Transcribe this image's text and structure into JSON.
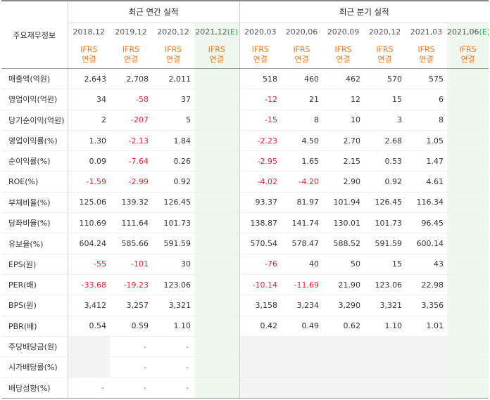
{
  "header": {
    "corner_label": "주요재무정보",
    "annual_title": "최근 연간 실적",
    "quarter_title": "최근 분기 실적",
    "annual_periods": [
      "2018,12",
      "2019,12",
      "2020,12",
      "2021,12"
    ],
    "annual_est_mark": "(E)",
    "quarter_periods": [
      "2020,03",
      "2020,06",
      "2020,09",
      "2020,12",
      "2021,03",
      "2021,06"
    ],
    "quarter_est_mark": "(E)",
    "ifrs_line1": "IFRS",
    "ifrs_line2": "연결"
  },
  "rows": [
    {
      "label": "매출액(억원)",
      "cells": [
        "2,643",
        "2,708",
        "2,011",
        "",
        "518",
        "460",
        "462",
        "570",
        "575",
        ""
      ]
    },
    {
      "label": "영업이익(억원)",
      "cells": [
        "34",
        "-58",
        "37",
        "",
        "-12",
        "21",
        "12",
        "15",
        "6",
        ""
      ]
    },
    {
      "label": "당기순이익(억원)",
      "cells": [
        "2",
        "-207",
        "5",
        "",
        "-15",
        "8",
        "10",
        "3",
        "8",
        ""
      ]
    },
    {
      "label": "영업이익률(%)",
      "cells": [
        "1.30",
        "-2.13",
        "1.84",
        "",
        "-2.23",
        "4.50",
        "2.70",
        "2.68",
        "1.05",
        ""
      ]
    },
    {
      "label": "순이익률(%)",
      "cells": [
        "0.09",
        "-7.64",
        "0.26",
        "",
        "-2.95",
        "1.65",
        "2.15",
        "0.53",
        "1.47",
        ""
      ]
    },
    {
      "label": "ROE(%)",
      "cells": [
        "-1.59",
        "-2.99",
        "0.92",
        "",
        "-4.02",
        "-4.20",
        "2.90",
        "0.92",
        "4.61",
        ""
      ]
    },
    {
      "label": "부채비율(%)",
      "cells": [
        "125.06",
        "139.32",
        "126.45",
        "",
        "93.37",
        "81.97",
        "101.94",
        "126.45",
        "116.34",
        ""
      ]
    },
    {
      "label": "당좌비율(%)",
      "cells": [
        "110.69",
        "111.64",
        "101.73",
        "",
        "138.87",
        "141.74",
        "130.01",
        "101.73",
        "96.45",
        ""
      ]
    },
    {
      "label": "유보율(%)",
      "cells": [
        "604.24",
        "585.66",
        "591.59",
        "",
        "570.54",
        "578.47",
        "588.52",
        "591.59",
        "600.14",
        ""
      ]
    },
    {
      "label": "EPS(원)",
      "cells": [
        "-55",
        "-101",
        "30",
        "",
        "-76",
        "40",
        "50",
        "15",
        "43",
        ""
      ]
    },
    {
      "label": "PER(배)",
      "cells": [
        "-33.68",
        "-19.23",
        "123.06",
        "",
        "-10.14",
        "-11.69",
        "21.90",
        "123.06",
        "22.98",
        ""
      ]
    },
    {
      "label": "BPS(원)",
      "cells": [
        "3,412",
        "3,257",
        "3,321",
        "",
        "3,158",
        "3,234",
        "3,290",
        "3,321",
        "3,356",
        ""
      ]
    },
    {
      "label": "PBR(배)",
      "cells": [
        "0.54",
        "0.59",
        "1.10",
        "",
        "0.42",
        "0.49",
        "0.62",
        "1.10",
        "1.01",
        ""
      ]
    },
    {
      "label": "주당배당금(원)",
      "cells": [
        "",
        "-",
        "-",
        "",
        "",
        "",
        "",
        "",
        "",
        ""
      ]
    },
    {
      "label": "시가배당률(%)",
      "cells": [
        "",
        "-",
        "-",
        "",
        "",
        "",
        "",
        "",
        "",
        ""
      ]
    },
    {
      "label": "배당성향(%)",
      "cells": [
        "-",
        "-",
        "-",
        "",
        "",
        "",
        "",
        "",
        "",
        ""
      ]
    }
  ],
  "colors": {
    "negative": "#e0262d",
    "ifrs": "#f0781e",
    "estimate_bg": "#eef8ee",
    "estimate_mark": "#2aa84a"
  }
}
